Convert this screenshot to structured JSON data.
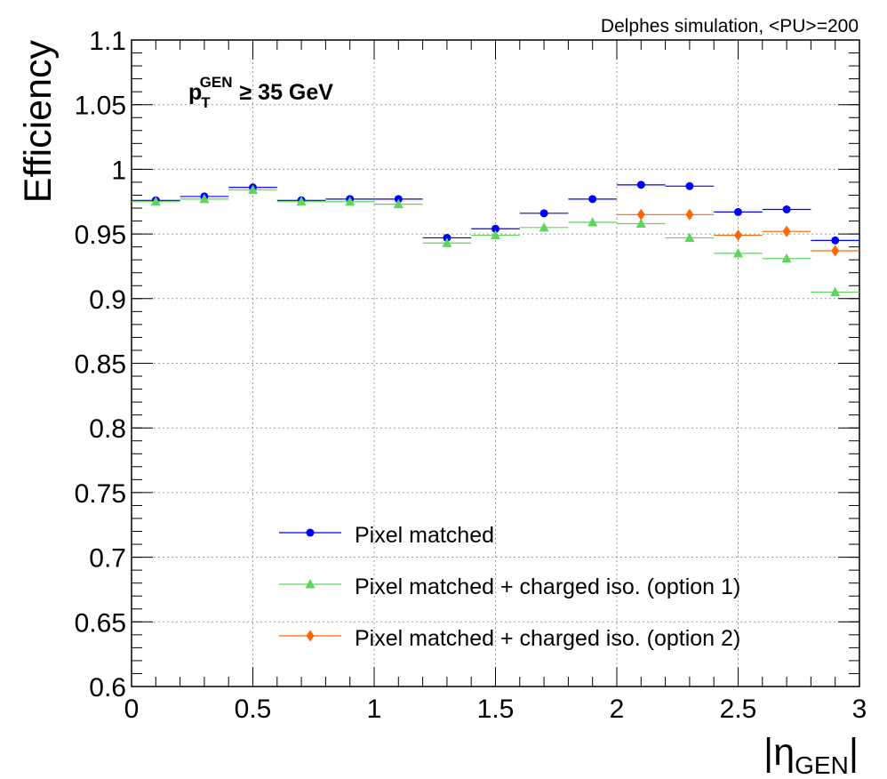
{
  "chart_data": {
    "type": "scatter",
    "header": "Delphes simulation, <PU>=200",
    "cut_label": {
      "p": "p",
      "sub": "T",
      "sup": "GEN",
      "rest": "≥ 35 GeV"
    },
    "xlabel": {
      "main": "|η",
      "sub": "GEN",
      "end": "|"
    },
    "ylabel": "Efficiency",
    "xlim": [
      0,
      3
    ],
    "ylim": [
      0.6,
      1.1
    ],
    "x_ticks": [
      "0",
      "0.5",
      "1",
      "1.5",
      "2",
      "2.5",
      "3"
    ],
    "y_ticks": [
      "0.6",
      "0.65",
      "0.7",
      "0.75",
      "0.8",
      "0.85",
      "0.9",
      "0.95",
      "1",
      "1.05",
      "1.1"
    ],
    "grid": true,
    "legend_position": "bottom-center",
    "x": [
      0.1,
      0.3,
      0.5,
      0.7,
      0.9,
      1.1,
      1.3,
      1.5,
      1.7,
      1.9,
      2.1,
      2.3,
      2.5,
      2.7,
      2.9
    ],
    "x_half_width": 0.1,
    "series": [
      {
        "name": "Pixel matched",
        "color": "#0000ff",
        "marker": "circle",
        "x": [
          0.1,
          0.3,
          0.5,
          0.7,
          0.9,
          1.1,
          1.3,
          1.5,
          1.7,
          1.9,
          2.1,
          2.3,
          2.5,
          2.7,
          2.9
        ],
        "values": [
          0.976,
          0.979,
          0.986,
          0.976,
          0.977,
          0.977,
          0.947,
          0.954,
          0.966,
          0.977,
          0.988,
          0.987,
          0.967,
          0.969,
          0.945
        ]
      },
      {
        "name": "Pixel matched + charged iso. (option 1)",
        "color": "#5fd45f",
        "marker": "triangle",
        "x": [
          0.1,
          0.3,
          0.5,
          0.7,
          0.9,
          1.1,
          1.3,
          1.5,
          1.7,
          1.9,
          2.1,
          2.3,
          2.5,
          2.7,
          2.9
        ],
        "values": [
          0.975,
          0.977,
          0.984,
          0.975,
          0.975,
          0.973,
          0.943,
          0.949,
          0.955,
          0.959,
          0.958,
          0.947,
          0.935,
          0.931,
          0.905
        ]
      },
      {
        "name": "Pixel matched + charged iso. (option 2)",
        "color": "#ff6600",
        "marker": "diamond",
        "x": [
          2.1,
          2.3,
          2.5,
          2.7,
          2.9
        ],
        "values": [
          0.965,
          0.965,
          0.949,
          0.952,
          0.937
        ]
      }
    ]
  }
}
